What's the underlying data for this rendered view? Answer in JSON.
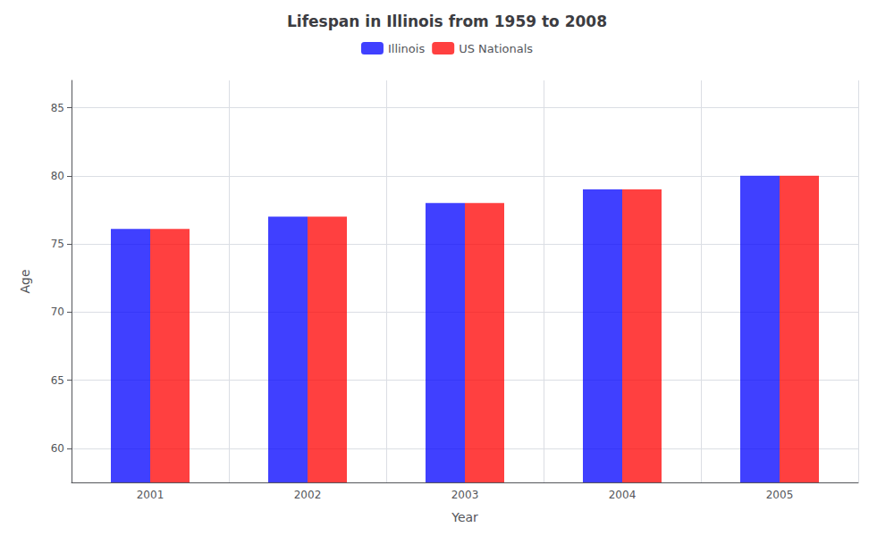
{
  "chart_data": {
    "type": "bar",
    "title": "Lifespan in Illinois from 1959 to 2008",
    "x_label": "Year",
    "y_label": "Age",
    "categories": [
      "2001",
      "2002",
      "2003",
      "2004",
      "2005"
    ],
    "series": [
      {
        "name": "Illinois",
        "color": "#0000ff",
        "values": [
          76.1,
          77.0,
          78.0,
          79.0,
          80.0
        ]
      },
      {
        "name": "US Nationals",
        "color": "#ff0000",
        "values": [
          76.1,
          77.0,
          78.0,
          79.0,
          80.0
        ]
      }
    ],
    "ylim": [
      57.5,
      87
    ],
    "yticks": [
      60,
      65,
      70,
      75,
      80,
      85
    ],
    "grid": true,
    "legend": "top"
  }
}
